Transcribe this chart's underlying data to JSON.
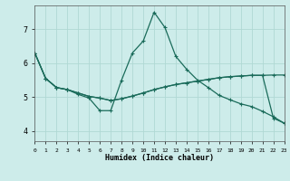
{
  "xlabel": "Humidex (Indice chaleur)",
  "background_color": "#cdecea",
  "grid_color": "#b0d8d4",
  "line_color": "#1a6b5a",
  "x_ticks": [
    0,
    1,
    2,
    3,
    4,
    5,
    6,
    7,
    8,
    9,
    10,
    11,
    12,
    13,
    14,
    15,
    16,
    17,
    18,
    19,
    20,
    21,
    22,
    23
  ],
  "y_ticks": [
    4,
    5,
    6,
    7
  ],
  "xlim": [
    0,
    23
  ],
  "ylim": [
    3.7,
    7.7
  ],
  "line1_x": [
    0,
    1,
    2,
    3,
    4,
    5,
    6,
    7,
    8,
    9,
    10,
    11,
    12,
    13,
    14,
    15,
    16,
    17,
    18,
    19,
    20,
    21,
    22,
    23
  ],
  "line1_y": [
    6.3,
    5.55,
    5.28,
    5.22,
    5.12,
    5.02,
    4.97,
    4.9,
    4.95,
    5.03,
    5.12,
    5.22,
    5.3,
    5.37,
    5.42,
    5.47,
    5.52,
    5.57,
    5.6,
    5.62,
    5.64,
    5.64,
    5.65,
    5.65
  ],
  "line2_x": [
    0,
    1,
    2,
    3,
    4,
    5,
    6,
    7,
    8,
    9,
    10,
    11,
    12,
    13,
    14,
    15,
    16,
    17,
    18,
    19,
    20,
    21,
    22,
    23
  ],
  "line2_y": [
    6.3,
    5.55,
    5.28,
    5.22,
    5.08,
    4.97,
    4.6,
    4.6,
    5.5,
    6.3,
    6.65,
    7.5,
    7.05,
    6.2,
    5.82,
    5.5,
    5.28,
    5.05,
    4.92,
    4.8,
    4.72,
    4.58,
    4.42,
    4.23
  ],
  "line3_x": [
    0,
    1,
    2,
    3,
    4,
    5,
    6,
    7,
    8,
    9,
    10,
    11,
    12,
    13,
    14,
    15,
    16,
    17,
    18,
    19,
    20,
    21,
    22,
    23
  ],
  "line3_y": [
    6.3,
    5.55,
    5.28,
    5.22,
    5.12,
    5.02,
    4.97,
    4.9,
    4.95,
    5.03,
    5.12,
    5.22,
    5.3,
    5.37,
    5.42,
    5.47,
    5.52,
    5.57,
    5.6,
    5.62,
    5.64,
    5.64,
    4.38,
    4.23
  ]
}
